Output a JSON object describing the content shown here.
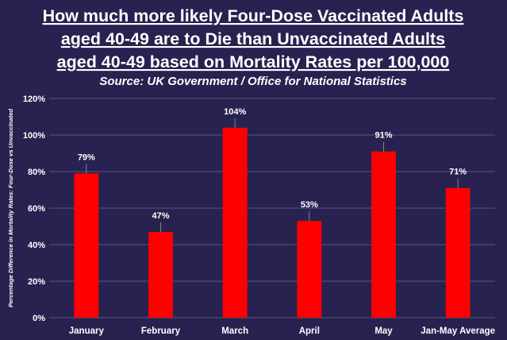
{
  "chart_data": {
    "type": "bar",
    "title_lines": [
      "How much more likely Four-Dose Vaccinated Adults",
      "aged 40-49 are to Die than Unvaccinated Adults",
      "aged 40-49 based on Mortality Rates per 100,000"
    ],
    "subtitle": "Source: UK Government / Office for National Statistics",
    "ylabel": "Percentage Difference in Mortality Rates: Four-Dose vs Unvaccinated",
    "xlabel": "",
    "categories": [
      "January",
      "February",
      "March",
      "April",
      "May",
      "Jan-May Average"
    ],
    "values": [
      79,
      47,
      104,
      53,
      91,
      71
    ],
    "data_labels": [
      "79%",
      "47%",
      "104%",
      "53%",
      "91%",
      "71%"
    ],
    "ylim": [
      0,
      120
    ],
    "y_ticks": [
      0,
      20,
      40,
      60,
      80,
      100,
      120
    ],
    "y_tick_labels": [
      "0%",
      "20%",
      "40%",
      "60%",
      "80%",
      "100%",
      "120%"
    ],
    "grid": true,
    "colors": {
      "background": "#27224f",
      "bar": "#ff0000",
      "text": "#ffffff",
      "grid": "#5a5680"
    }
  }
}
